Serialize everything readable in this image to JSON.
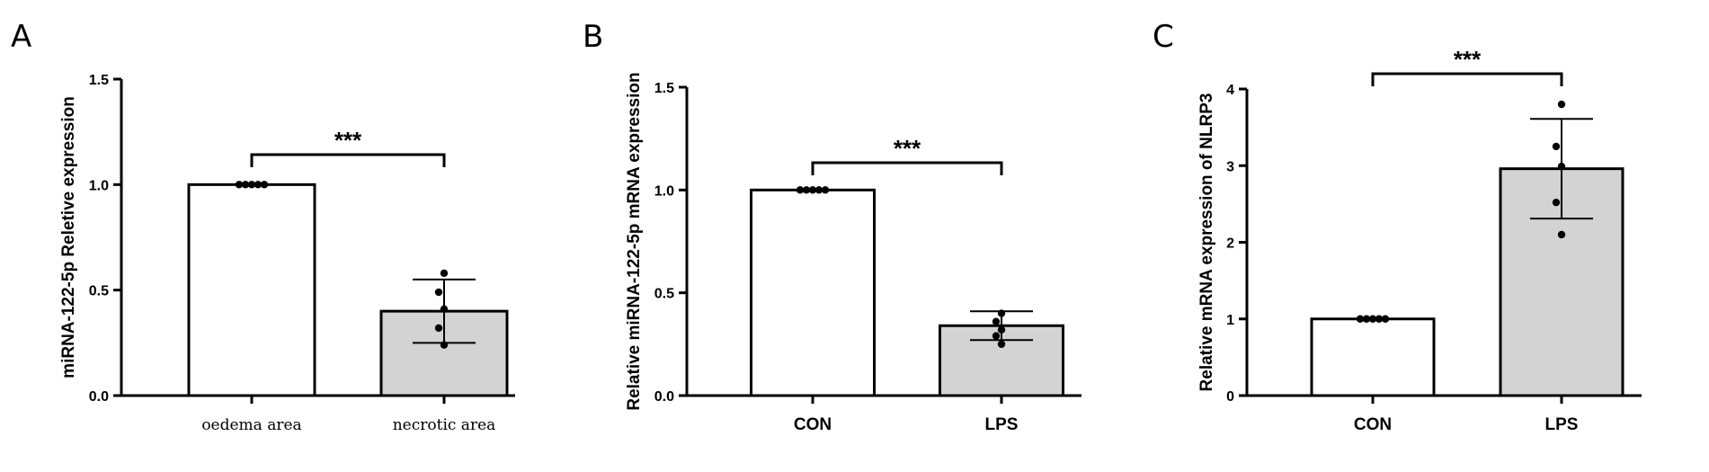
{
  "colors": {
    "control_bar": "#ffffff",
    "treatment_bar": "#d3d3d3",
    "stroke": "#000000"
  },
  "chart_data": [
    {
      "panel": "A",
      "type": "bar",
      "ylabel": "miRNA-122-5p Reletive expression",
      "xlabel": "",
      "categories": [
        "oedema area",
        "necrotic area"
      ],
      "values": [
        1.0,
        0.4
      ],
      "error_sd": [
        0.0,
        0.15
      ],
      "points": [
        [
          1.0,
          1.0,
          1.0,
          1.0,
          1.0
        ],
        [
          0.58,
          0.49,
          0.41,
          0.32,
          0.24
        ]
      ],
      "ylim": [
        0,
        1.5
      ],
      "yticks": [
        0.0,
        0.5,
        1.0,
        1.5
      ],
      "ytick_labels": [
        "0.0",
        "0.5",
        "1.0",
        "1.5"
      ],
      "significance": "***",
      "category_font": "serif"
    },
    {
      "panel": "B",
      "type": "bar",
      "ylabel": "Relative miRNA-122-5p mRNA expression",
      "xlabel": "",
      "categories": [
        "CON",
        "LPS"
      ],
      "values": [
        1.0,
        0.34
      ],
      "error_sd": [
        0.0,
        0.07
      ],
      "points": [
        [
          1.0,
          1.0,
          1.0,
          1.0,
          1.0
        ],
        [
          0.4,
          0.36,
          0.32,
          0.29,
          0.25
        ]
      ],
      "ylim": [
        0,
        1.5
      ],
      "yticks": [
        0.0,
        0.5,
        1.0,
        1.5
      ],
      "ytick_labels": [
        "0.0",
        "0.5",
        "1.0",
        "1.5"
      ],
      "significance": "***",
      "category_font": "sans"
    },
    {
      "panel": "C",
      "type": "bar",
      "ylabel": "Relative mRNA expression of NLRP3",
      "xlabel": "",
      "categories": [
        "CON",
        "LPS"
      ],
      "values": [
        1.0,
        2.96
      ],
      "error_sd": [
        0.0,
        0.65
      ],
      "points": [
        [
          1.0,
          1.0,
          1.0,
          1.0,
          1.0
        ],
        [
          3.8,
          3.25,
          2.99,
          2.52,
          2.1
        ]
      ],
      "ylim": [
        0,
        4
      ],
      "yticks": [
        0,
        1,
        2,
        3,
        4
      ],
      "ytick_labels": [
        "0",
        "1",
        "2",
        "3",
        "4"
      ],
      "significance": "***",
      "category_font": "sans"
    }
  ]
}
